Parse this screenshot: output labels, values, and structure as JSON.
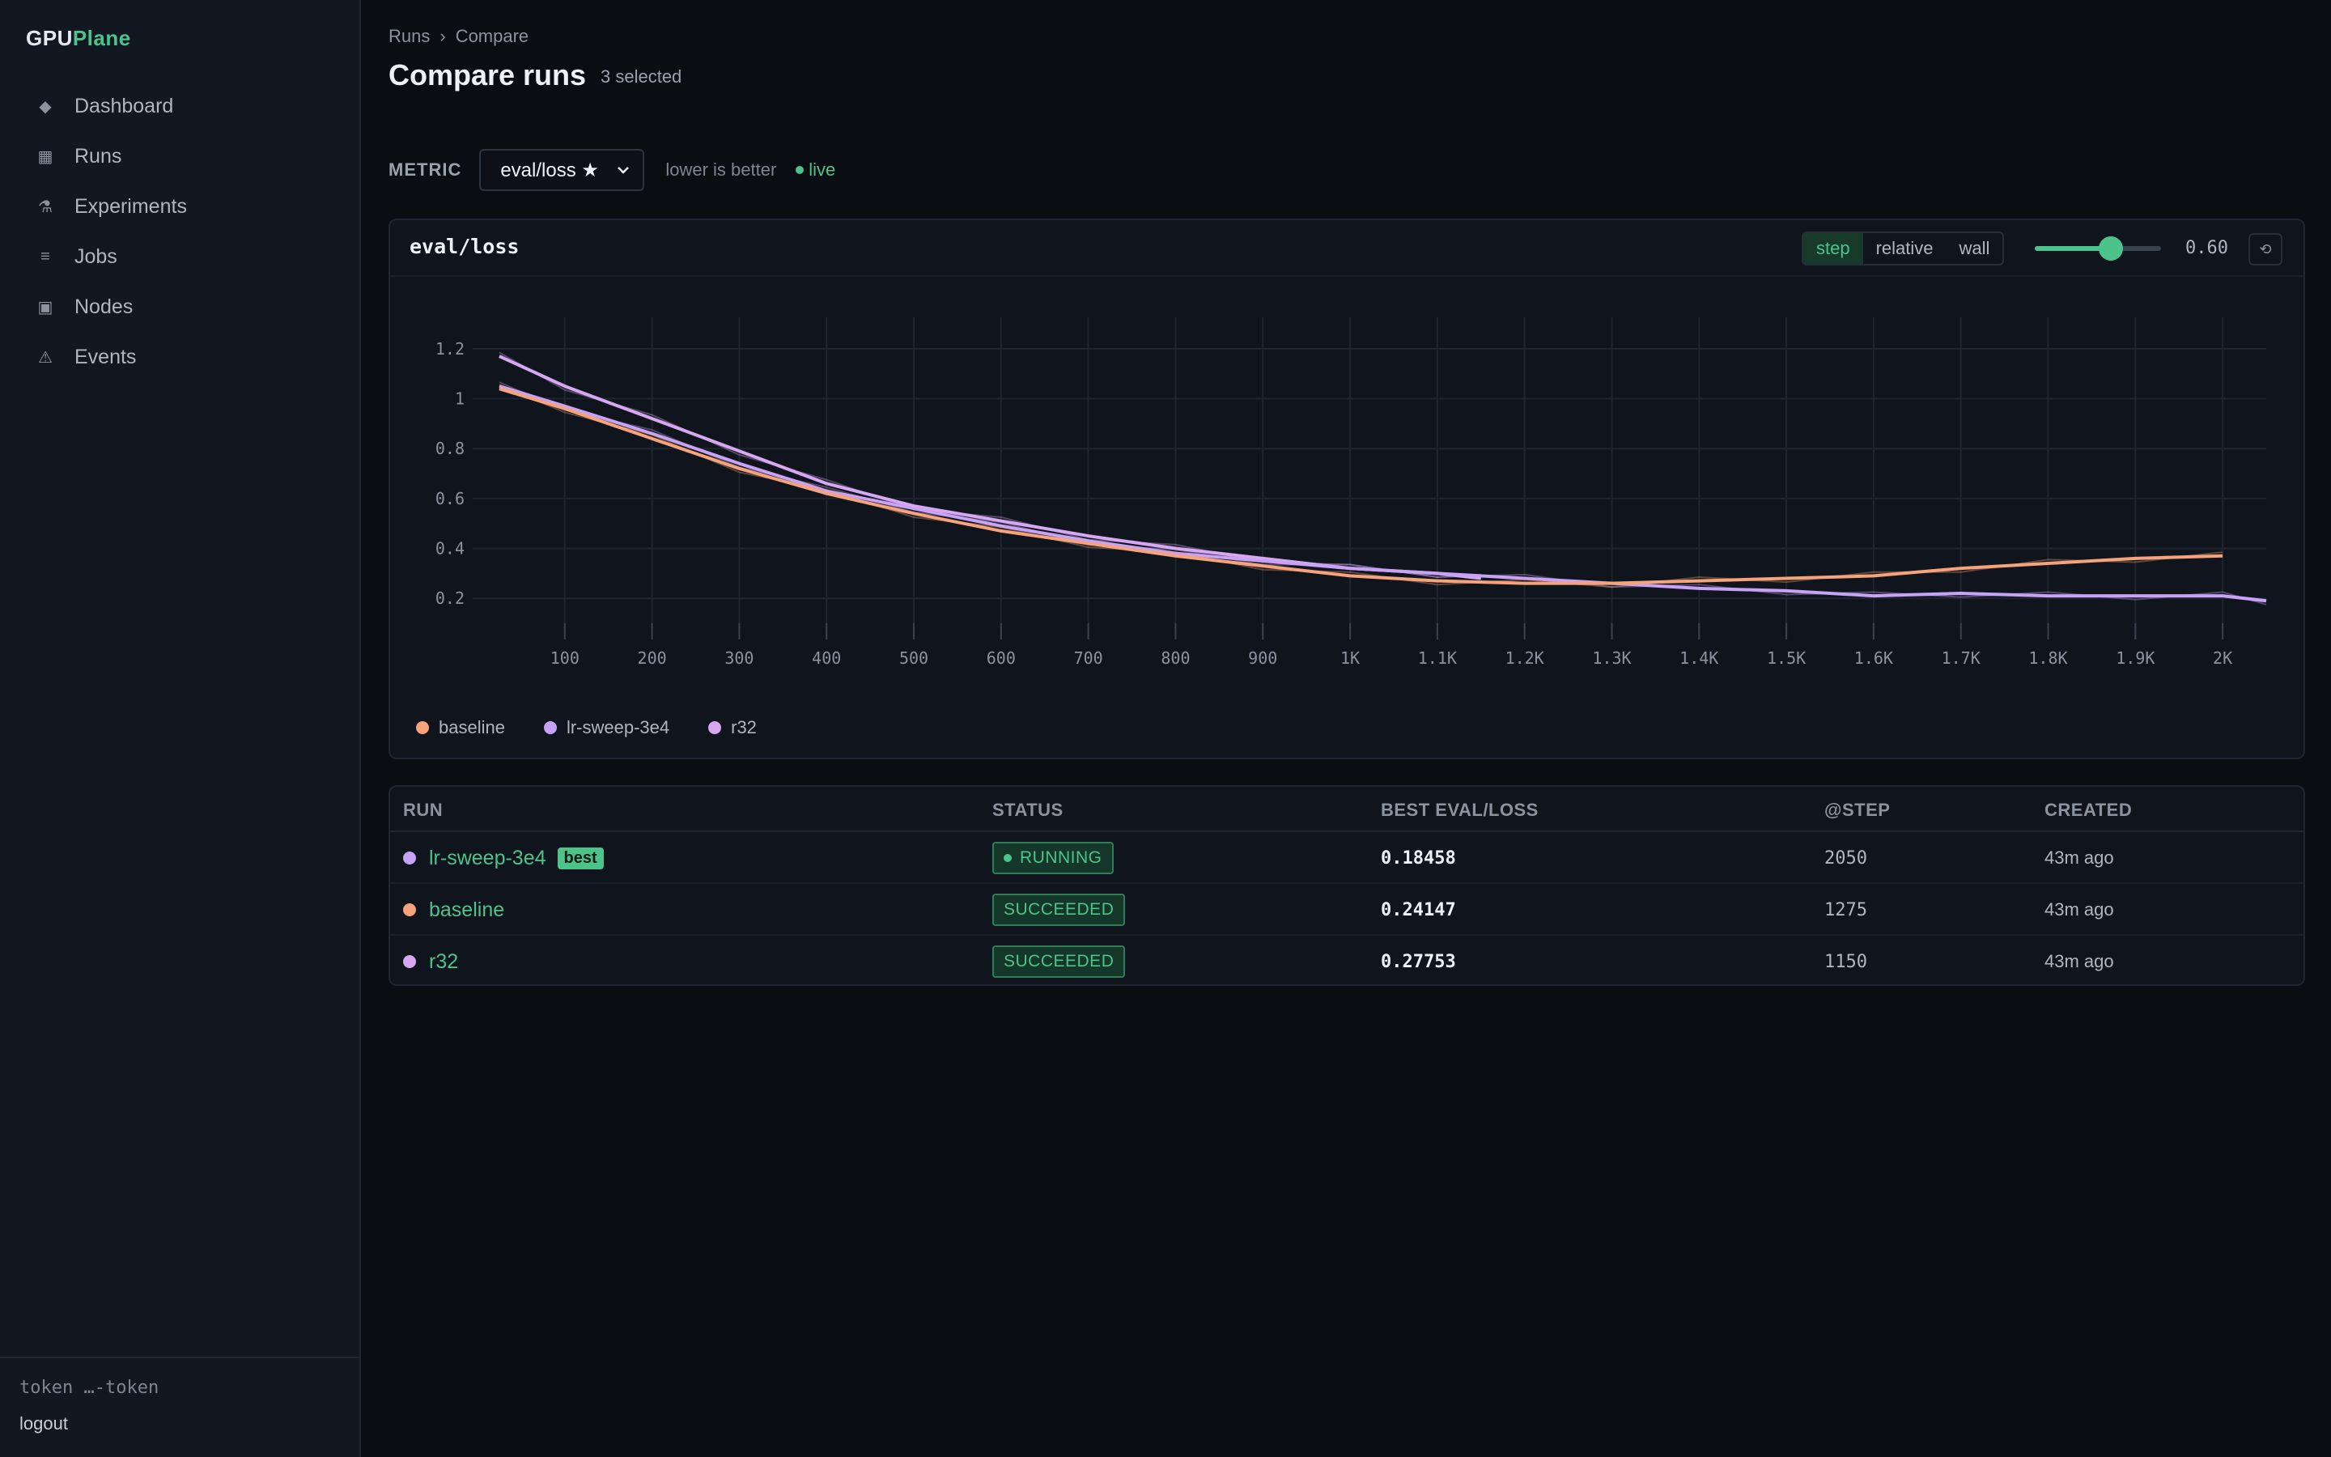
{
  "brand": {
    "part1": "GPU",
    "part2": "Plane"
  },
  "nav": [
    {
      "icon": "◆",
      "label": "Dashboard",
      "name": "dashboard"
    },
    {
      "icon": "▦",
      "label": "Runs",
      "name": "runs"
    },
    {
      "icon": "⚗",
      "label": "Experiments",
      "name": "experiments"
    },
    {
      "icon": "≡",
      "label": "Jobs",
      "name": "jobs"
    },
    {
      "icon": "▣",
      "label": "Nodes",
      "name": "nodes"
    },
    {
      "icon": "⚠",
      "label": "Events",
      "name": "events"
    }
  ],
  "footer": {
    "token": "token …-token",
    "logout": "logout"
  },
  "breadcrumb": {
    "root": "Runs",
    "sep": "›",
    "current": "Compare"
  },
  "page": {
    "title": "Compare runs",
    "selected": "3 selected"
  },
  "metric": {
    "label": "METRIC",
    "value": "eval/loss ★",
    "hint": "lower is better",
    "live": "live"
  },
  "chart_header": {
    "title": "eval/loss",
    "modes": [
      "step",
      "relative",
      "wall"
    ],
    "active_mode": "step",
    "smoothing": 0.6,
    "smoothing_label": "0.60",
    "reset_icon": "⟲"
  },
  "colors": {
    "baseline": "#f4a37a",
    "lr-sweep-3e4": "#c7a2f5",
    "r32": "#d6a8f2",
    "accent": "#4cc38a"
  },
  "chart_data": {
    "type": "line",
    "title": "eval/loss",
    "xlabel": "",
    "ylabel": "",
    "xlim": [
      0,
      2050
    ],
    "ylim": [
      0.1,
      1.3
    ],
    "x_ticks": [
      100,
      200,
      300,
      400,
      500,
      600,
      700,
      800,
      900,
      1000,
      1100,
      1200,
      1300,
      1400,
      1500,
      1600,
      1700,
      1800,
      1900,
      2000
    ],
    "x_tick_labels": [
      "100",
      "200",
      "300",
      "400",
      "500",
      "600",
      "700",
      "800",
      "900",
      "1K",
      "1.1K",
      "1.2K",
      "1.3K",
      "1.4K",
      "1.5K",
      "1.6K",
      "1.7K",
      "1.8K",
      "1.9K",
      "2K"
    ],
    "y_ticks": [
      0.2,
      0.4,
      0.6,
      0.8,
      1.0,
      1.2
    ],
    "y_tick_labels": [
      "0.2",
      "0.4",
      "0.6",
      "0.8",
      "1",
      "1.2"
    ],
    "grid": true,
    "legend": "bottom-left",
    "series": [
      {
        "name": "baseline",
        "color": "#f4a37a",
        "x": [
          25,
          100,
          200,
          300,
          400,
          500,
          600,
          700,
          800,
          900,
          1000,
          1100,
          1200,
          1300,
          1400,
          1500,
          1600,
          1700,
          1800,
          1900,
          2000
        ],
        "y": [
          1.04,
          0.96,
          0.84,
          0.72,
          0.62,
          0.54,
          0.47,
          0.42,
          0.37,
          0.33,
          0.29,
          0.27,
          0.26,
          0.26,
          0.27,
          0.28,
          0.29,
          0.32,
          0.34,
          0.36,
          0.37
        ]
      },
      {
        "name": "lr-sweep-3e4",
        "color": "#c7a2f5",
        "x": [
          25,
          100,
          200,
          300,
          400,
          500,
          600,
          700,
          800,
          900,
          1000,
          1100,
          1200,
          1300,
          1400,
          1500,
          1600,
          1700,
          1800,
          1900,
          2000,
          2050
        ],
        "y": [
          1.05,
          0.97,
          0.86,
          0.74,
          0.63,
          0.56,
          0.49,
          0.43,
          0.38,
          0.35,
          0.32,
          0.3,
          0.28,
          0.26,
          0.24,
          0.23,
          0.21,
          0.22,
          0.21,
          0.21,
          0.21,
          0.19
        ]
      },
      {
        "name": "r32",
        "color": "#d6a8f2",
        "x": [
          25,
          100,
          200,
          300,
          400,
          500,
          600,
          700,
          800,
          900,
          1000,
          1100,
          1150
        ],
        "y": [
          1.17,
          1.05,
          0.92,
          0.79,
          0.66,
          0.57,
          0.51,
          0.45,
          0.4,
          0.36,
          0.32,
          0.3,
          0.28
        ]
      }
    ]
  },
  "table": {
    "headers": [
      "RUN",
      "STATUS",
      "BEST EVAL/LOSS",
      "@STEP",
      "CREATED"
    ],
    "rows": [
      {
        "run": "lr-sweep-3e4",
        "color": "#c7a2f5",
        "badge": "best",
        "status": "RUNNING",
        "best": "0.18458",
        "step": "2050",
        "created": "43m ago"
      },
      {
        "run": "baseline",
        "color": "#f4a37a",
        "badge": "",
        "status": "SUCCEEDED",
        "best": "0.24147",
        "step": "1275",
        "created": "43m ago"
      },
      {
        "run": "r32",
        "color": "#d6a8f2",
        "badge": "",
        "status": "SUCCEEDED",
        "best": "0.27753",
        "step": "1150",
        "created": "43m ago"
      }
    ]
  }
}
